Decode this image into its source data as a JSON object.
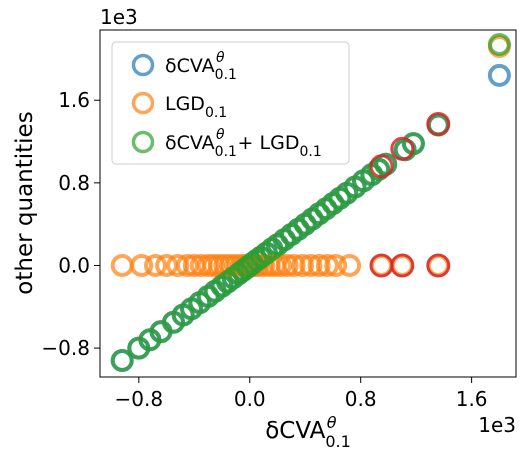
{
  "chart_data": {
    "type": "scatter",
    "xlabel": "δCVA_{0.1}^{θ}",
    "ylabel": "other quantities",
    "x_offset_label": "1e3",
    "y_offset_label": "1e3",
    "xlim": [
      -1.08,
      1.92
    ],
    "ylim": [
      -1.08,
      2.28
    ],
    "xticks": [
      -0.8,
      0.0,
      0.8,
      1.6
    ],
    "yticks": [
      -0.8,
      0.0,
      0.8,
      1.6
    ],
    "xtick_labels": [
      "−0.8",
      "0.0",
      "0.8",
      "1.6"
    ],
    "ytick_labels": [
      "−0.8",
      "0.0",
      "0.8",
      "1.6"
    ],
    "grid": false,
    "legend_placement": "upper-left",
    "colors": {
      "blue": "#1f77b4",
      "orange": "#ff7f0e",
      "green": "#2ca02c",
      "highlight": "#d62728"
    },
    "series": [
      {
        "name": "δCVA_{0.1}^{θ}",
        "color": "#1f77b4",
        "x": [
          -0.92,
          -0.8,
          -0.72,
          -0.64,
          -0.55,
          -0.48,
          -0.42,
          -0.36,
          -0.3,
          -0.25,
          -0.2,
          -0.16,
          -0.12,
          -0.08,
          -0.05,
          -0.02,
          0.0,
          0.02,
          0.05,
          0.08,
          0.12,
          0.16,
          0.2,
          0.25,
          0.3,
          0.35,
          0.4,
          0.45,
          0.5,
          0.55,
          0.6,
          0.65,
          0.7,
          0.76,
          0.82,
          0.88,
          0.93,
          0.98,
          1.12,
          1.18,
          1.36,
          1.8
        ],
        "y": [
          -0.92,
          -0.8,
          -0.72,
          -0.64,
          -0.55,
          -0.48,
          -0.42,
          -0.36,
          -0.3,
          -0.25,
          -0.2,
          -0.16,
          -0.12,
          -0.08,
          -0.05,
          -0.02,
          0.0,
          0.02,
          0.05,
          0.08,
          0.12,
          0.16,
          0.2,
          0.25,
          0.3,
          0.35,
          0.4,
          0.45,
          0.5,
          0.55,
          0.6,
          0.65,
          0.7,
          0.76,
          0.82,
          0.88,
          0.93,
          0.98,
          1.12,
          1.18,
          1.36,
          1.84
        ]
      },
      {
        "name": "LGD_{0.1}",
        "color": "#ff7f0e",
        "x": [
          -0.92,
          -0.78,
          -0.68,
          -0.6,
          -0.52,
          -0.45,
          -0.4,
          -0.35,
          -0.3,
          -0.26,
          -0.22,
          -0.18,
          -0.14,
          -0.1,
          -0.06,
          -0.03,
          0.0,
          0.03,
          0.06,
          0.1,
          0.14,
          0.18,
          0.22,
          0.27,
          0.32,
          0.38,
          0.44,
          0.5,
          0.56,
          0.62,
          0.72,
          0.95,
          1.1,
          1.36,
          1.8
        ],
        "y": [
          0,
          0,
          0,
          0,
          0,
          0,
          0,
          0,
          0,
          0,
          0,
          0,
          0,
          0,
          0,
          0,
          0,
          0,
          0,
          0,
          0,
          0,
          0,
          0,
          0,
          0,
          0,
          0,
          0,
          0,
          0,
          0,
          0,
          0,
          2.12
        ]
      },
      {
        "name": "δCVA_{0.1}^{θ} + LGD_{0.1}",
        "color": "#2ca02c",
        "x": [
          -0.92,
          -0.8,
          -0.72,
          -0.64,
          -0.55,
          -0.48,
          -0.42,
          -0.36,
          -0.3,
          -0.25,
          -0.2,
          -0.16,
          -0.12,
          -0.08,
          -0.05,
          -0.02,
          0.0,
          0.02,
          0.05,
          0.08,
          0.12,
          0.16,
          0.2,
          0.25,
          0.3,
          0.35,
          0.4,
          0.45,
          0.5,
          0.55,
          0.6,
          0.65,
          0.7,
          0.76,
          0.82,
          0.88,
          0.93,
          0.98,
          1.12,
          1.18,
          1.36,
          1.8
        ],
        "y": [
          -0.92,
          -0.8,
          -0.72,
          -0.64,
          -0.55,
          -0.48,
          -0.42,
          -0.36,
          -0.3,
          -0.25,
          -0.2,
          -0.16,
          -0.12,
          -0.08,
          -0.05,
          -0.02,
          0.0,
          0.02,
          0.05,
          0.08,
          0.12,
          0.16,
          0.2,
          0.25,
          0.3,
          0.35,
          0.4,
          0.45,
          0.5,
          0.55,
          0.6,
          0.65,
          0.7,
          0.76,
          0.82,
          0.88,
          0.93,
          0.98,
          1.12,
          1.18,
          1.36,
          2.14
        ]
      }
    ],
    "highlighted_points": {
      "color": "#d62728",
      "x": [
        0.95,
        0.95,
        1.1,
        1.1,
        1.36,
        1.36
      ],
      "y": [
        0.0,
        0.96,
        0.0,
        1.13,
        0.0,
        1.37
      ]
    }
  }
}
